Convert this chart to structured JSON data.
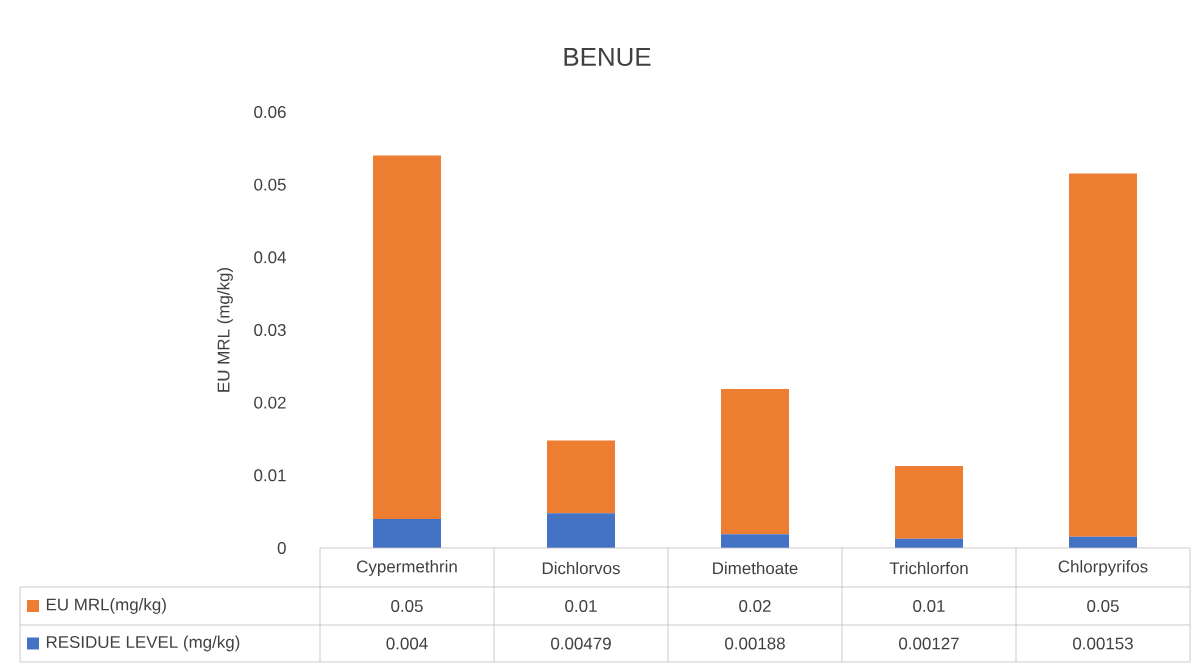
{
  "chart_data": {
    "type": "bar",
    "title": "BENUE",
    "ylabel": "EU MRL (mg/kg)",
    "categories": [
      "Cypermethrin",
      "Dichlorvos",
      "Dimethoate",
      "Trichlorfon",
      "Chlorpyrifos"
    ],
    "series": [
      {
        "name": "RESIDUE LEVEL (mg/kg)",
        "color": "#4472c4",
        "values": [
          0.004,
          0.00479,
          0.00188,
          0.00127,
          0.00153
        ]
      },
      {
        "name": "EU MRL(mg/kg)",
        "color": "#ed7d31",
        "values": [
          0.05,
          0.01,
          0.02,
          0.01,
          0.05
        ]
      }
    ],
    "stacked": true,
    "ylim": [
      0,
      0.06
    ],
    "yticks": [
      0,
      0.01,
      0.02,
      0.03,
      0.04,
      0.05,
      0.06
    ],
    "data_labels": true,
    "legend": "bottom"
  }
}
